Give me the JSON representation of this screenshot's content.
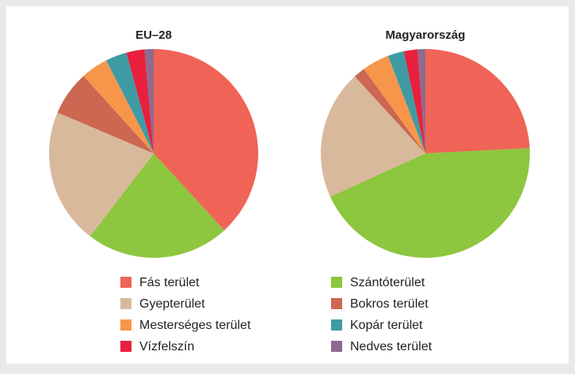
{
  "chart_data": [
    {
      "type": "pie",
      "title": "EU–28",
      "categories": [
        "Fás terület",
        "Szántóterület",
        "Gyepterület",
        "Bokros terület",
        "Mesterséges terület",
        "Kopár terület",
        "Vízfelszín",
        "Nedves terület"
      ],
      "colors": [
        "#ef6456",
        "#8dc63f",
        "#d9b99b",
        "#cc6751",
        "#f7964a",
        "#3e9ba4",
        "#e8203d",
        "#8e6a8e"
      ],
      "values": [
        38.2,
        22.2,
        21.0,
        6.9,
        4.2,
        3.3,
        2.8,
        1.4
      ]
    },
    {
      "type": "pie",
      "title": "Magyarország",
      "values": [
        24.2,
        44.0,
        20.0,
        1.8,
        4.2,
        2.5,
        2.1,
        1.2
      ]
    }
  ]
}
